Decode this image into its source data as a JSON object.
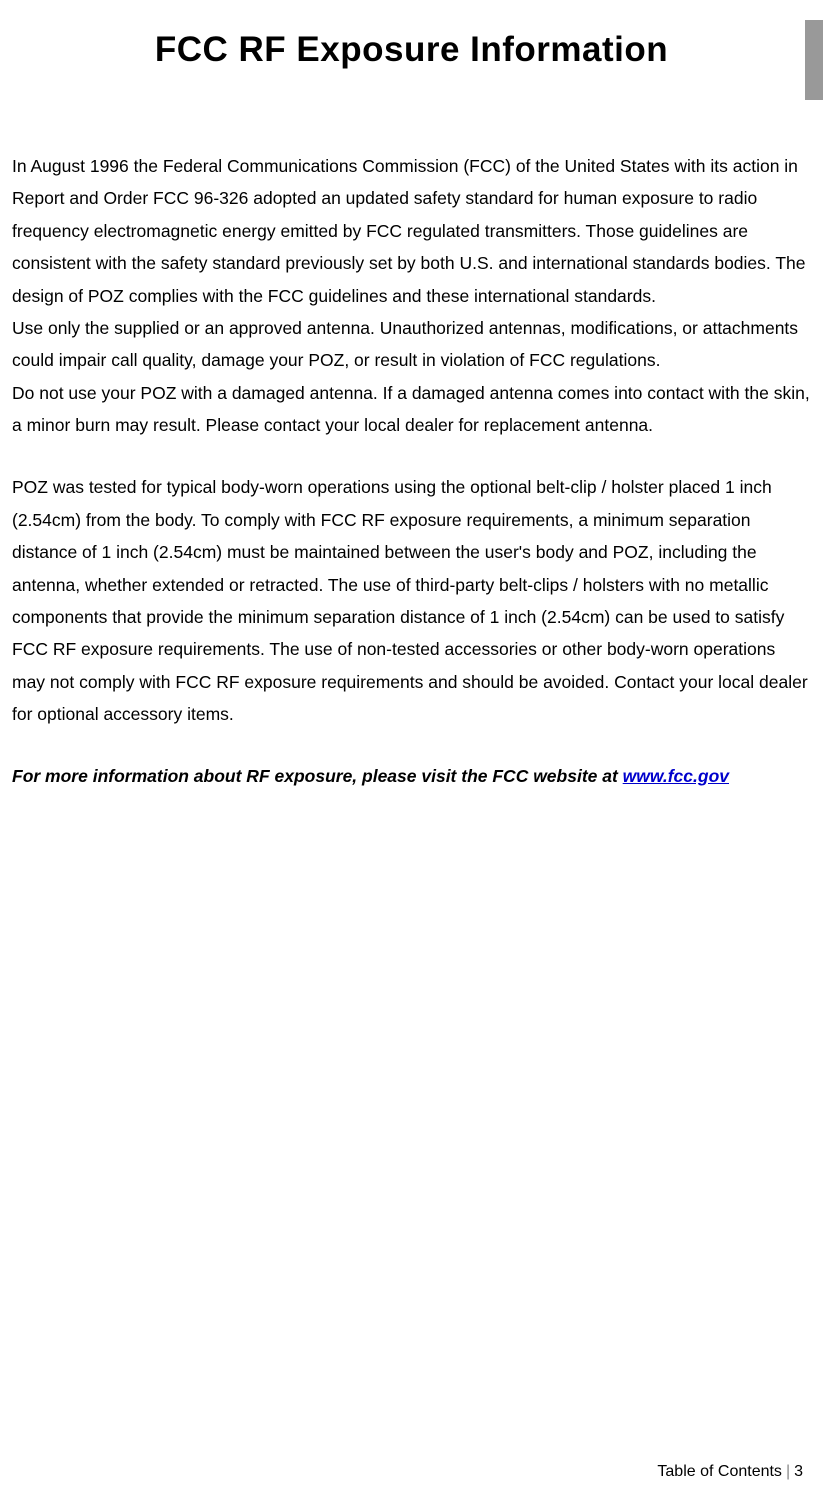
{
  "title": "FCC RF Exposure Information",
  "paragraph1": "In August 1996 the Federal Communications Commission (FCC) of the United States with its action in Report and Order FCC 96-326 adopted an updated safety standard for human exposure to radio frequency electromagnetic energy emitted by FCC regulated transmitters. Those guidelines are consistent with the safety standard previously set by both U.S. and international standards bodies. The design of POZ complies with the FCC guidelines and these international standards.",
  "paragraph2": "Use only the supplied or an approved antenna.   Unauthorized antennas, modifications, or attachments could impair call quality, damage your POZ, or result in violation of FCC regulations.",
  "paragraph3": "Do not use your POZ with a damaged antenna.   If a damaged antenna comes into contact with the skin, a minor burn may result. Please contact your local dealer for replacement antenna.",
  "paragraph4": "POZ was tested for typical body-worn operations using the optional belt-clip / holster placed 1 inch (2.54cm) from the body.   To comply with FCC RF exposure requirements, a minimum separation distance of 1 inch (2.54cm) must be maintained between the user's body and POZ, including the antenna, whether extended or retracted.   The use of third-party belt-clips / holsters with no metallic components that provide the minimum separation distance of 1 inch (2.54cm) can be used to satisfy FCC RF exposure requirements.   The use of non-tested accessories or other body-worn operations may not comply with FCC RF exposure requirements and should be avoided.   Contact your local dealer for optional accessory items.",
  "more_info_prefix": "For more information about RF exposure, please visit the FCC website at ",
  "link_text": "www.fcc.gov",
  "footer_label": "Table of Contents",
  "footer_page": "3"
}
